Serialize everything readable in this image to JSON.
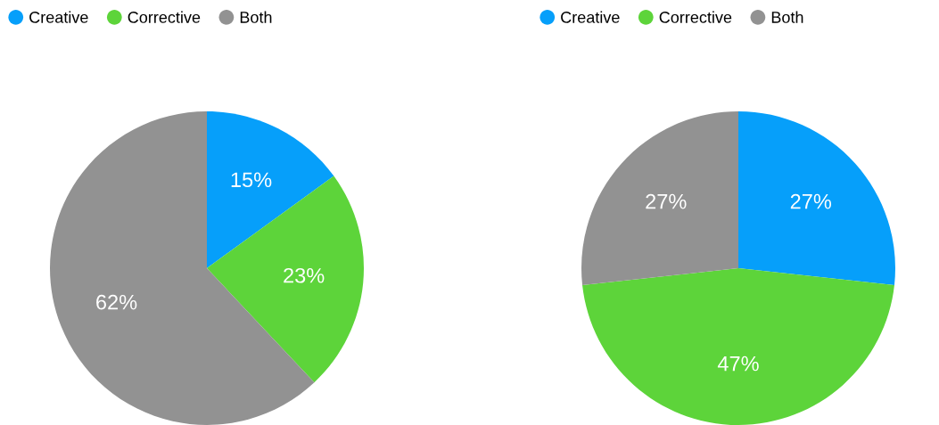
{
  "chart_data": [
    {
      "type": "pie",
      "categories": [
        "Creative",
        "Corrective",
        "Both"
      ],
      "values": [
        15,
        23,
        62
      ],
      "colors": [
        "#069ffa",
        "#5dd43a",
        "#929292"
      ],
      "value_labels": [
        "15%",
        "23%",
        "62%"
      ],
      "legend": "top left"
    },
    {
      "type": "pie",
      "categories": [
        "Creative",
        "Corrective",
        "Both"
      ],
      "values": [
        27,
        47,
        27
      ],
      "colors": [
        "#069ffa",
        "#5dd43a",
        "#929292"
      ],
      "value_labels": [
        "27%",
        "47%",
        "27%"
      ],
      "legend": "top left"
    }
  ]
}
